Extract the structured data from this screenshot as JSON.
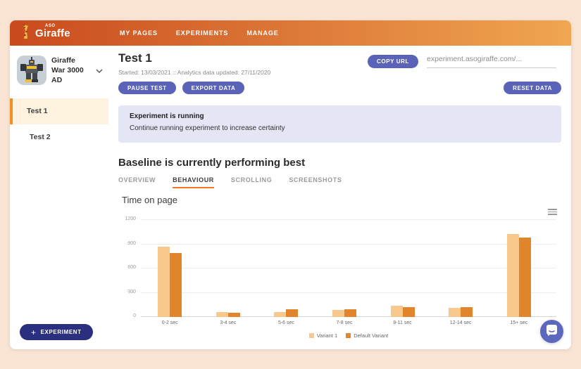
{
  "header": {
    "logo": {
      "brand": "Giraffe",
      "superscript": "ASO"
    },
    "nav": [
      {
        "label": "MY PAGES"
      },
      {
        "label": "EXPERIMENTS"
      },
      {
        "label": "MANAGE"
      }
    ]
  },
  "sidebar": {
    "app": {
      "name": "Giraffe War 3000 AD"
    },
    "items": [
      {
        "label": "Test 1",
        "active": true
      },
      {
        "label": "Test 2",
        "active": false
      }
    ],
    "new_experiment": {
      "plus": "+",
      "label": "EXPERIMENT"
    }
  },
  "main": {
    "title": "Test 1",
    "subtitle": "Started: 13/03/2021 :: Analytics data updated: 27/11/2020",
    "copy_url_label": "COPY URL",
    "url_value": "experiment.asogiraffe.com/...",
    "buttons": {
      "pause": "PAUSE TEST",
      "export": "EXPORT DATA",
      "reset": "RESET DATA"
    },
    "alert": {
      "title": "Experiment is running",
      "body": "Continue running experiment to increase certainty"
    },
    "result_heading": "Baseline is currently performing best",
    "tabs": [
      {
        "label": "OVERVIEW",
        "active": false
      },
      {
        "label": "BEHAVIOUR",
        "active": true
      },
      {
        "label": "SCROLLING",
        "active": false
      },
      {
        "label": "SCREENSHOTS",
        "active": false
      }
    ]
  },
  "chart_data": {
    "type": "bar",
    "title": "Time on page",
    "categories": [
      "0-2 sec",
      "3-4 sec",
      "5-6 sec",
      "7-8 sec",
      "9-11 sec",
      "12-14 sec",
      "15+ sec"
    ],
    "series": [
      {
        "name": "Variant 1",
        "color": "#f8c88c",
        "values": [
          870,
          60,
          65,
          90,
          135,
          110,
          1030
        ]
      },
      {
        "name": "Default Variant",
        "color": "#e1852d",
        "values": [
          790,
          55,
          95,
          95,
          125,
          120,
          985
        ]
      }
    ],
    "xlabel": "",
    "ylabel": "",
    "ylim": [
      0,
      1200
    ],
    "yticks": [
      0,
      300,
      600,
      900,
      1200
    ],
    "grid": true,
    "legend_position": "bottom"
  },
  "colors": {
    "header_gradient_start": "#c94a1d",
    "header_gradient_end": "#f0a652",
    "accent_indigo": "#5a63b8",
    "fab_navy": "#2b2f80",
    "active_tab_underline": "#f47b20",
    "sidebar_active_bg": "#fdf2dd",
    "sidebar_active_border": "#f29123",
    "alert_bg": "#e4e6f5",
    "page_bg": "#f9e3d3"
  }
}
